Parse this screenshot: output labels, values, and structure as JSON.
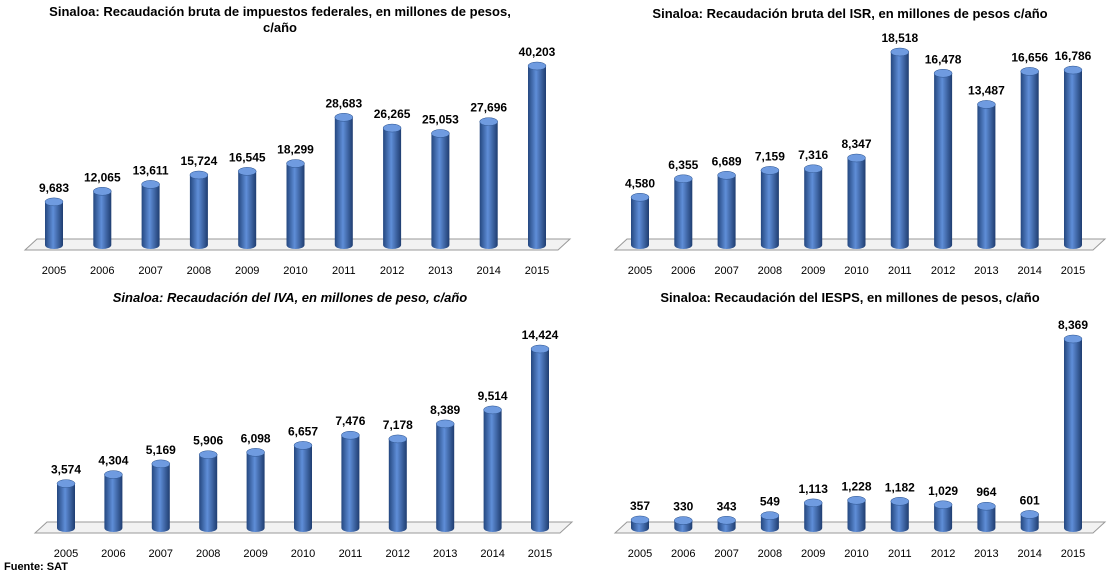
{
  "chart_data": [
    {
      "type": "bar",
      "title": "Sinaloa: Recaudación bruta de impuestos federales, en millones de pesos, c/año",
      "color": "#3f6fc0",
      "categories": [
        "2005",
        "2006",
        "2007",
        "2008",
        "2009",
        "2010",
        "2011",
        "2012",
        "2013",
        "2014",
        "2015"
      ],
      "values": [
        9683,
        12065,
        13611,
        15724,
        16545,
        18299,
        28683,
        26265,
        25053,
        27696,
        40203
      ],
      "value_labels": [
        "9,683",
        "12,065",
        "13,611",
        "15,724",
        "16,545",
        "18,299",
        "28,683",
        "26,265",
        "25,053",
        "27,696",
        "40,203"
      ]
    },
    {
      "type": "bar",
      "title": "Sinaloa: Recaudación bruta del ISR, en millones de pesos c/año",
      "color": "#3f6fc0",
      "categories": [
        "2005",
        "2006",
        "2007",
        "2008",
        "2009",
        "2010",
        "2011",
        "2012",
        "2013",
        "2014",
        "2015"
      ],
      "values": [
        4580,
        6355,
        6689,
        7159,
        7316,
        8347,
        18518,
        16478,
        13487,
        16656,
        16786
      ],
      "value_labels": [
        "4,580",
        "6,355",
        "6,689",
        "7,159",
        "7,316",
        "8,347",
        "18,518",
        "16,478",
        "13,487",
        "16,656",
        "16,786"
      ]
    },
    {
      "type": "bar",
      "title": "Sinaloa: Recaudación del IVA, en millones de peso, c/año",
      "title_style": "italic",
      "color": "#3f6fc0",
      "categories": [
        "2005",
        "2006",
        "2007",
        "2008",
        "2009",
        "2010",
        "2011",
        "2012",
        "2013",
        "2014",
        "2015"
      ],
      "values": [
        3574,
        4304,
        5169,
        5906,
        6098,
        6657,
        7476,
        7178,
        8389,
        9514,
        14424
      ],
      "value_labels": [
        "3,574",
        "4,304",
        "5,169",
        "5,906",
        "6,098",
        "6,657",
        "7,476",
        "7,178",
        "8,389",
        "9,514",
        "14,424"
      ]
    },
    {
      "type": "bar",
      "title": "Sinaloa: Recaudación del IESPS, en millones de pesos, c/año",
      "color": "#3f6fc0",
      "categories": [
        "2005",
        "2006",
        "2007",
        "2008",
        "2009",
        "2010",
        "2011",
        "2012",
        "2013",
        "2014",
        "2015"
      ],
      "values": [
        357,
        330,
        343,
        549,
        1113,
        1228,
        1182,
        1029,
        964,
        601,
        8369
      ],
      "value_labels": [
        "357",
        "330",
        "343",
        "549",
        "1,113",
        "1,228",
        "1,182",
        "1,029",
        "964",
        "601",
        "8,369"
      ]
    }
  ],
  "source": "Fuente: SAT"
}
